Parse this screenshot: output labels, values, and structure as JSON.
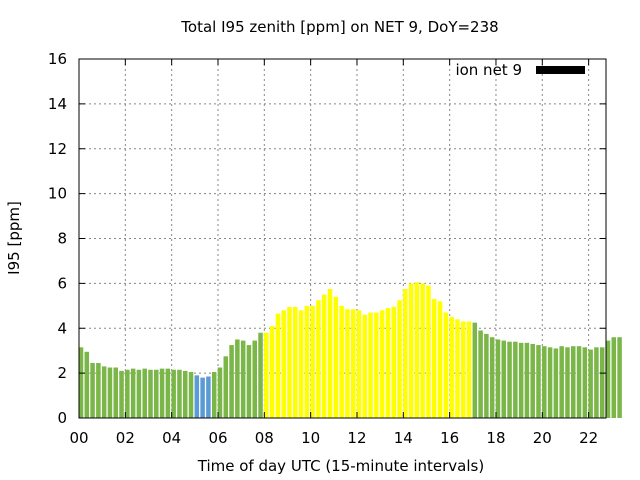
{
  "chart_data": {
    "type": "bar",
    "title": "Total I95 zenith [ppm] on NET 9, DoY=238",
    "xlabel": "Time of day UTC (15-minute intervals)",
    "ylabel": "I95 [ppm]",
    "ylim": [
      0,
      16
    ],
    "xlim": [
      0,
      22.75
    ],
    "grid": true,
    "legend": {
      "placement": "top-right",
      "entries": [
        {
          "label": "ion net 9",
          "color": "#000000"
        }
      ]
    },
    "x_tick_labels": [
      "00",
      "02",
      "04",
      "06",
      "08",
      "10",
      "12",
      "14",
      "16",
      "18",
      "20",
      "22"
    ],
    "x_tick_values": [
      0,
      2,
      4,
      6,
      8,
      10,
      12,
      14,
      16,
      18,
      20,
      22
    ],
    "y_tick_labels": [
      "0",
      "2",
      "4",
      "6",
      "8",
      "10",
      "12",
      "14",
      "16"
    ],
    "y_tick_values": [
      0,
      2,
      4,
      6,
      8,
      10,
      12,
      14,
      16
    ],
    "interval_hours": 0.25,
    "start_hour": 0,
    "colors": {
      "green": "#7ab648",
      "blue": "#5b9bd5",
      "yellow": "#ffff00"
    },
    "values": [
      3.15,
      2.95,
      2.45,
      2.45,
      2.3,
      2.25,
      2.25,
      2.1,
      2.15,
      2.2,
      2.15,
      2.2,
      2.15,
      2.15,
      2.2,
      2.2,
      2.15,
      2.15,
      2.1,
      2.05,
      1.9,
      1.8,
      1.85,
      2.05,
      2.25,
      2.75,
      3.25,
      3.5,
      3.45,
      3.25,
      3.45,
      3.8,
      3.8,
      4.1,
      4.65,
      4.8,
      4.95,
      4.95,
      4.8,
      5.0,
      5.0,
      5.25,
      5.5,
      5.75,
      5.4,
      5.0,
      4.85,
      4.85,
      4.8,
      4.6,
      4.7,
      4.7,
      4.8,
      4.9,
      4.95,
      5.25,
      5.75,
      6.0,
      6.05,
      6.0,
      5.9,
      5.3,
      5.2,
      4.7,
      4.5,
      4.4,
      4.3,
      4.3,
      4.25,
      3.9,
      3.75,
      3.6,
      3.5,
      3.45,
      3.4,
      3.4,
      3.35,
      3.35,
      3.3,
      3.25,
      3.2,
      3.15,
      3.1,
      3.2,
      3.15,
      3.2,
      3.2,
      3.15,
      3.05,
      3.15,
      3.15,
      3.45,
      3.6,
      3.6
    ],
    "bar_colors": [
      "green",
      "green",
      "green",
      "green",
      "green",
      "green",
      "green",
      "green",
      "green",
      "green",
      "green",
      "green",
      "green",
      "green",
      "green",
      "green",
      "green",
      "green",
      "green",
      "green",
      "blue",
      "blue",
      "blue",
      "green",
      "green",
      "green",
      "green",
      "green",
      "green",
      "green",
      "green",
      "green",
      "yellow",
      "yellow",
      "yellow",
      "yellow",
      "yellow",
      "yellow",
      "yellow",
      "yellow",
      "yellow",
      "yellow",
      "yellow",
      "yellow",
      "yellow",
      "yellow",
      "yellow",
      "yellow",
      "yellow",
      "yellow",
      "yellow",
      "yellow",
      "yellow",
      "yellow",
      "yellow",
      "yellow",
      "yellow",
      "yellow",
      "yellow",
      "yellow",
      "yellow",
      "yellow",
      "yellow",
      "yellow",
      "yellow",
      "yellow",
      "yellow",
      "yellow",
      "green",
      "green",
      "green",
      "green",
      "green",
      "green",
      "green",
      "green",
      "green",
      "green",
      "green",
      "green",
      "green",
      "green",
      "green",
      "green",
      "green",
      "green",
      "green",
      "green",
      "green",
      "green",
      "green",
      "green",
      "green",
      "green"
    ]
  }
}
